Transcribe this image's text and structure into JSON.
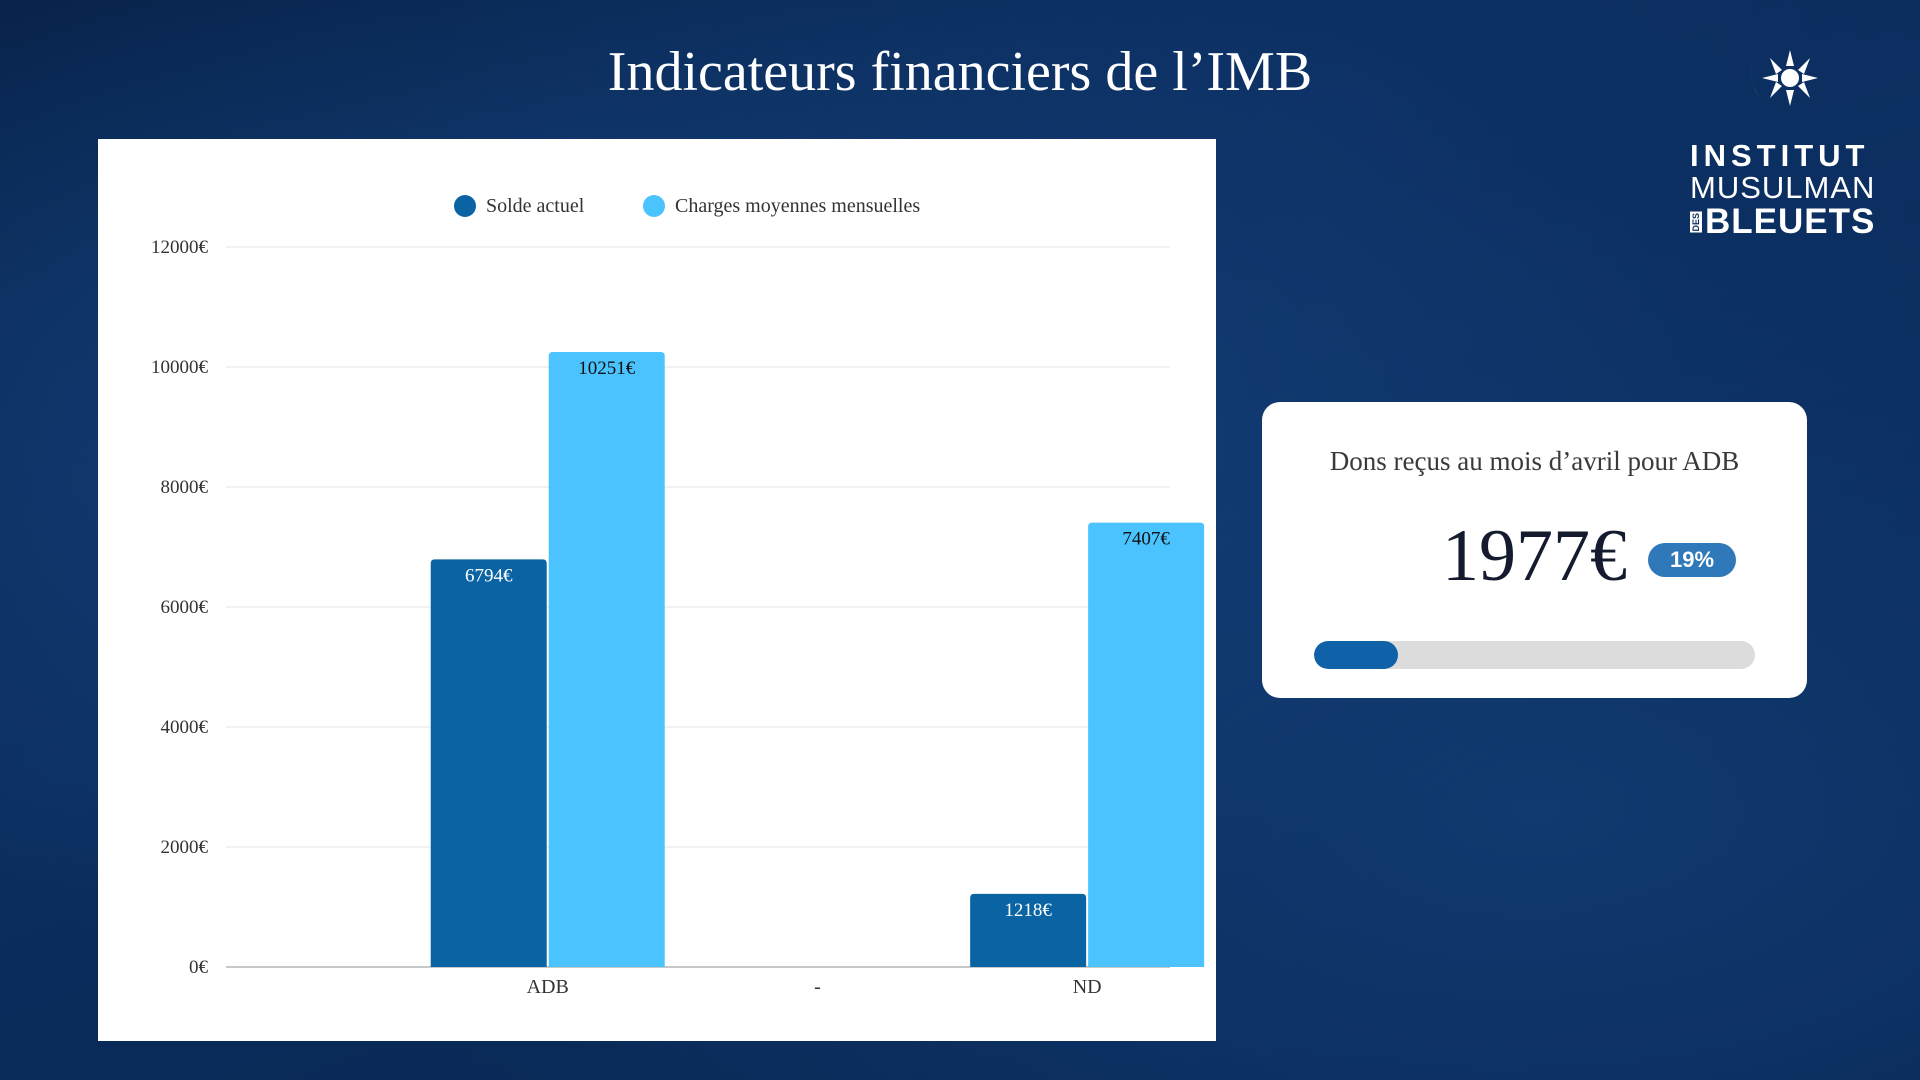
{
  "page": {
    "title": "Indicateurs financiers de l’IMB"
  },
  "logo": {
    "line1": "INSTITUT",
    "line2": "MUSULMAN",
    "small": "DES",
    "line3": "BLEUETS"
  },
  "chart_data": {
    "type": "bar",
    "categories": [
      "ADB",
      "-",
      "ND"
    ],
    "series": [
      {
        "name": "Solde actuel",
        "color": "#0a64a4",
        "values": [
          6794,
          null,
          1218
        ],
        "labels": [
          "6794€",
          "",
          "1218€"
        ]
      },
      {
        "name": "Charges moyennes mensuelles",
        "color": "#4ac3ff",
        "values": [
          10251,
          null,
          7407
        ],
        "labels": [
          "10251€",
          "",
          "7407€"
        ]
      }
    ],
    "ylim": [
      0,
      12000
    ],
    "yticks": [
      0,
      2000,
      4000,
      6000,
      8000,
      10000,
      12000
    ],
    "ytick_labels": [
      "0€",
      "2000€",
      "4000€",
      "6000€",
      "8000€",
      "10000€",
      "12000€"
    ],
    "grid": true,
    "legend": "top"
  },
  "donation_card": {
    "title": "Dons reçus au mois d’avril pour ADB",
    "amount": "1977€",
    "percent_label": "19%",
    "progress": 0.19,
    "fill_color": "#0f62a8",
    "track_color": "#dcdcdc"
  }
}
